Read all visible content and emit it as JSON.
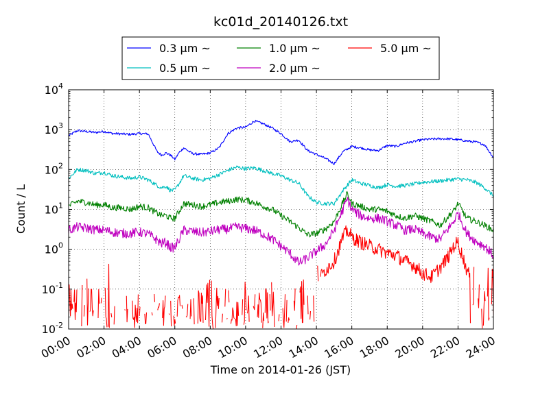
{
  "chart_data": {
    "type": "line",
    "title": "kc01d_20140126.txt",
    "xlabel": "Time on 2014-01-26 (JST)",
    "ylabel": "Count / L",
    "y_scale": "log",
    "xlim": [
      "00:00",
      "24:00"
    ],
    "ylim": [
      0.01,
      10000
    ],
    "grid": true,
    "legend_position": "top-center",
    "x_ticks": [
      "00:00",
      "02:00",
      "04:00",
      "06:00",
      "08:00",
      "10:00",
      "12:00",
      "14:00",
      "16:00",
      "18:00",
      "20:00",
      "22:00",
      "24:00"
    ],
    "y_ticks": [
      {
        "value": 0.01,
        "base": "10",
        "exp": "-2"
      },
      {
        "value": 0.1,
        "base": "10",
        "exp": "-1"
      },
      {
        "value": 1,
        "base": "10",
        "exp": "0"
      },
      {
        "value": 10,
        "base": "10",
        "exp": "1"
      },
      {
        "value": 100,
        "base": "10",
        "exp": "2"
      },
      {
        "value": 1000,
        "base": "10",
        "exp": "3"
      },
      {
        "value": 10000,
        "base": "10",
        "exp": "4"
      }
    ],
    "series": [
      {
        "name": "0.3 μm ~",
        "color": "#0000ff",
        "x": [
          "00:00",
          "00:30",
          "01:00",
          "01:30",
          "02:00",
          "02:30",
          "03:00",
          "03:30",
          "04:00",
          "04:30",
          "05:00",
          "05:15",
          "05:30",
          "05:45",
          "06:00",
          "06:15",
          "06:30",
          "07:00",
          "07:30",
          "08:00",
          "08:30",
          "09:00",
          "09:30",
          "10:00",
          "10:30",
          "11:00",
          "11:30",
          "12:00",
          "12:30",
          "13:00",
          "13:30",
          "14:00",
          "14:30",
          "15:00",
          "15:30",
          "16:00",
          "16:30",
          "17:00",
          "17:30",
          "18:00",
          "18:30",
          "19:00",
          "19:30",
          "20:00",
          "20:30",
          "21:00",
          "21:30",
          "22:00",
          "22:30",
          "23:00",
          "23:30",
          "24:00"
        ],
        "y": [
          700,
          950,
          900,
          850,
          900,
          800,
          780,
          760,
          800,
          780,
          280,
          230,
          260,
          230,
          180,
          270,
          350,
          250,
          240,
          260,
          350,
          800,
          1100,
          1150,
          1650,
          1400,
          1100,
          800,
          500,
          550,
          300,
          240,
          190,
          140,
          280,
          380,
          350,
          310,
          300,
          400,
          380,
          460,
          500,
          560,
          580,
          590,
          590,
          560,
          520,
          490,
          420,
          200
        ]
      },
      {
        "name": "0.5 μm ~",
        "color": "#00bfbf",
        "x": [
          "00:00",
          "00:30",
          "01:00",
          "01:30",
          "02:00",
          "02:30",
          "03:00",
          "03:30",
          "04:00",
          "04:30",
          "05:00",
          "05:15",
          "05:30",
          "05:45",
          "06:00",
          "06:15",
          "06:30",
          "07:00",
          "07:30",
          "08:00",
          "08:30",
          "09:00",
          "09:30",
          "10:00",
          "10:30",
          "11:00",
          "11:30",
          "12:00",
          "12:30",
          "13:00",
          "13:30",
          "14:00",
          "14:30",
          "15:00",
          "15:30",
          "16:00",
          "16:30",
          "17:00",
          "17:30",
          "18:00",
          "18:30",
          "19:00",
          "19:30",
          "20:00",
          "20:30",
          "21:00",
          "21:30",
          "22:00",
          "22:30",
          "23:00",
          "23:30",
          "24:00"
        ],
        "y": [
          60,
          100,
          95,
          80,
          85,
          70,
          65,
          60,
          65,
          55,
          40,
          35,
          38,
          30,
          30,
          45,
          70,
          60,
          55,
          60,
          75,
          95,
          115,
          105,
          110,
          95,
          80,
          70,
          55,
          45,
          22,
          15,
          14,
          14,
          30,
          55,
          45,
          40,
          35,
          42,
          38,
          40,
          43,
          48,
          50,
          52,
          55,
          58,
          55,
          48,
          35,
          22
        ]
      },
      {
        "name": "1.0 μm ~",
        "color": "#008000",
        "x": [
          "00:00",
          "00:30",
          "01:00",
          "01:30",
          "02:00",
          "02:30",
          "03:00",
          "03:30",
          "04:00",
          "04:30",
          "05:00",
          "05:15",
          "05:30",
          "05:45",
          "06:00",
          "06:15",
          "06:30",
          "07:00",
          "07:30",
          "08:00",
          "08:30",
          "09:00",
          "09:30",
          "10:00",
          "10:30",
          "11:00",
          "11:30",
          "12:00",
          "12:30",
          "13:00",
          "13:30",
          "14:00",
          "14:30",
          "15:00",
          "15:30",
          "15:45",
          "16:00",
          "16:30",
          "17:00",
          "17:30",
          "18:00",
          "18:30",
          "19:00",
          "19:30",
          "20:00",
          "20:30",
          "21:00",
          "21:30",
          "21:45",
          "22:00",
          "22:30",
          "23:00",
          "23:30",
          "24:00"
        ],
        "y": [
          12,
          16,
          15,
          13,
          13,
          11,
          11,
          10,
          12,
          11,
          8,
          7,
          7,
          6,
          6,
          9,
          14,
          13,
          12,
          13,
          15,
          16,
          18,
          17,
          15,
          12,
          10,
          7,
          5,
          3.5,
          2.3,
          2.5,
          3.2,
          5,
          15,
          25,
          14,
          12,
          10,
          10,
          9,
          7,
          6,
          7,
          6,
          5,
          4,
          7,
          9,
          14,
          6,
          5,
          4,
          3
        ]
      },
      {
        "name": "2.0 μm ~",
        "color": "#bf00bf",
        "x": [
          "00:00",
          "00:30",
          "01:00",
          "01:30",
          "02:00",
          "02:30",
          "03:00",
          "03:30",
          "04:00",
          "04:30",
          "05:00",
          "05:15",
          "05:30",
          "05:45",
          "06:00",
          "06:15",
          "06:30",
          "07:00",
          "07:30",
          "08:00",
          "08:30",
          "09:00",
          "09:30",
          "10:00",
          "10:30",
          "11:00",
          "11:30",
          "12:00",
          "12:30",
          "13:00",
          "13:30",
          "14:00",
          "14:30",
          "15:00",
          "15:30",
          "15:45",
          "16:00",
          "16:30",
          "17:00",
          "17:30",
          "18:00",
          "18:30",
          "19:00",
          "19:30",
          "20:00",
          "20:30",
          "21:00",
          "21:30",
          "21:45",
          "22:00",
          "22:30",
          "23:00",
          "23:30",
          "24:00"
        ],
        "y": [
          3,
          3.6,
          3.4,
          3.1,
          3,
          2.7,
          2.5,
          2.5,
          2.7,
          2.4,
          1.7,
          1.4,
          1.5,
          1.1,
          1.1,
          1.8,
          3,
          2.8,
          2.6,
          2.8,
          3.1,
          3.2,
          3.6,
          3.3,
          3,
          2.4,
          1.8,
          1.2,
          0.8,
          0.45,
          0.6,
          0.9,
          1.3,
          3,
          10,
          18,
          10,
          7,
          6,
          6,
          5,
          4,
          3,
          3.2,
          2.5,
          2,
          1.8,
          3.5,
          5,
          8,
          2.5,
          1.6,
          1.2,
          0.7
        ]
      },
      {
        "name": "5.0 μm ~",
        "color": "#ff0000",
        "x": [
          "00:00",
          "00:30",
          "01:00",
          "01:30",
          "02:00",
          "02:30",
          "03:00",
          "03:30",
          "04:00",
          "04:30",
          "05:00",
          "05:30",
          "06:00",
          "06:30",
          "07:00",
          "07:30",
          "08:00",
          "08:30",
          "09:00",
          "09:30",
          "10:00",
          "10:30",
          "11:00",
          "11:30",
          "12:00",
          "12:30",
          "13:00",
          "13:30",
          "14:00",
          "14:30",
          "15:00",
          "15:30",
          "15:45",
          "16:00",
          "16:30",
          "17:00",
          "17:30",
          "18:00",
          "18:30",
          "19:00",
          "19:30",
          "20:00",
          "20:30",
          "21:00",
          "21:30",
          "21:45",
          "22:00",
          "22:30",
          "23:00",
          "23:30",
          "24:00"
        ],
        "y": [
          0.06,
          0.05,
          0.04,
          0.03,
          0.05,
          0.03,
          0.02,
          0.04,
          0.03,
          0.02,
          0.02,
          0.03,
          0.02,
          0.03,
          0.04,
          0.03,
          0.05,
          0.03,
          0.04,
          0.02,
          0.03,
          0.04,
          0.03,
          0.05,
          0.03,
          0.03,
          0.06,
          0.1,
          0.15,
          0.3,
          0.5,
          2,
          3,
          2,
          1.5,
          1.2,
          1,
          0.8,
          0.7,
          0.5,
          0.4,
          0.25,
          0.2,
          0.35,
          0.7,
          1.2,
          1.5,
          0.3,
          0.1,
          0.05,
          0.15
        ]
      }
    ]
  }
}
